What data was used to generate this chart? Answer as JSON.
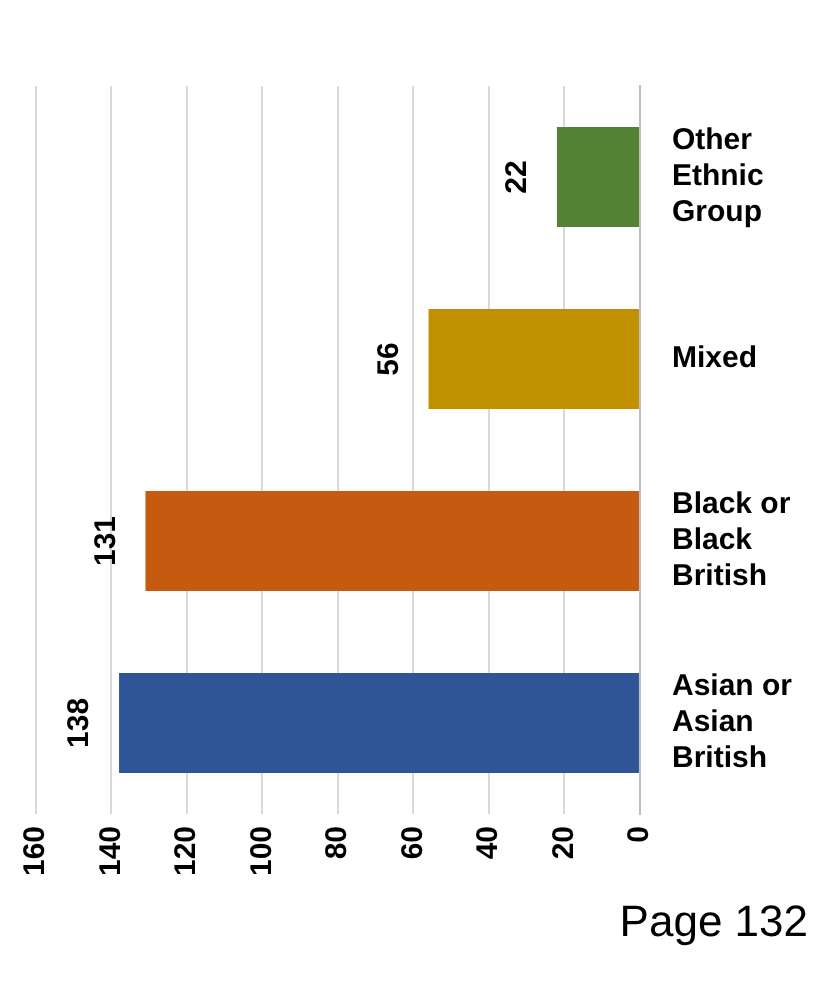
{
  "chart_data": {
    "type": "bar",
    "orientation": "horizontal",
    "categories": [
      "Other Ethnic Group",
      "Mixed",
      "Black or Black British",
      "Asian or Asian British"
    ],
    "values": [
      22,
      56,
      131,
      138
    ],
    "colors": [
      "#548235",
      "#bf9000",
      "#c55a11",
      "#2f5597"
    ],
    "xlim": [
      160,
      0
    ],
    "xticks": [
      160,
      140,
      120,
      100,
      80,
      60,
      40,
      20,
      0
    ],
    "grid": "x",
    "data_labels": true,
    "annotations": [
      "Page 132"
    ]
  }
}
